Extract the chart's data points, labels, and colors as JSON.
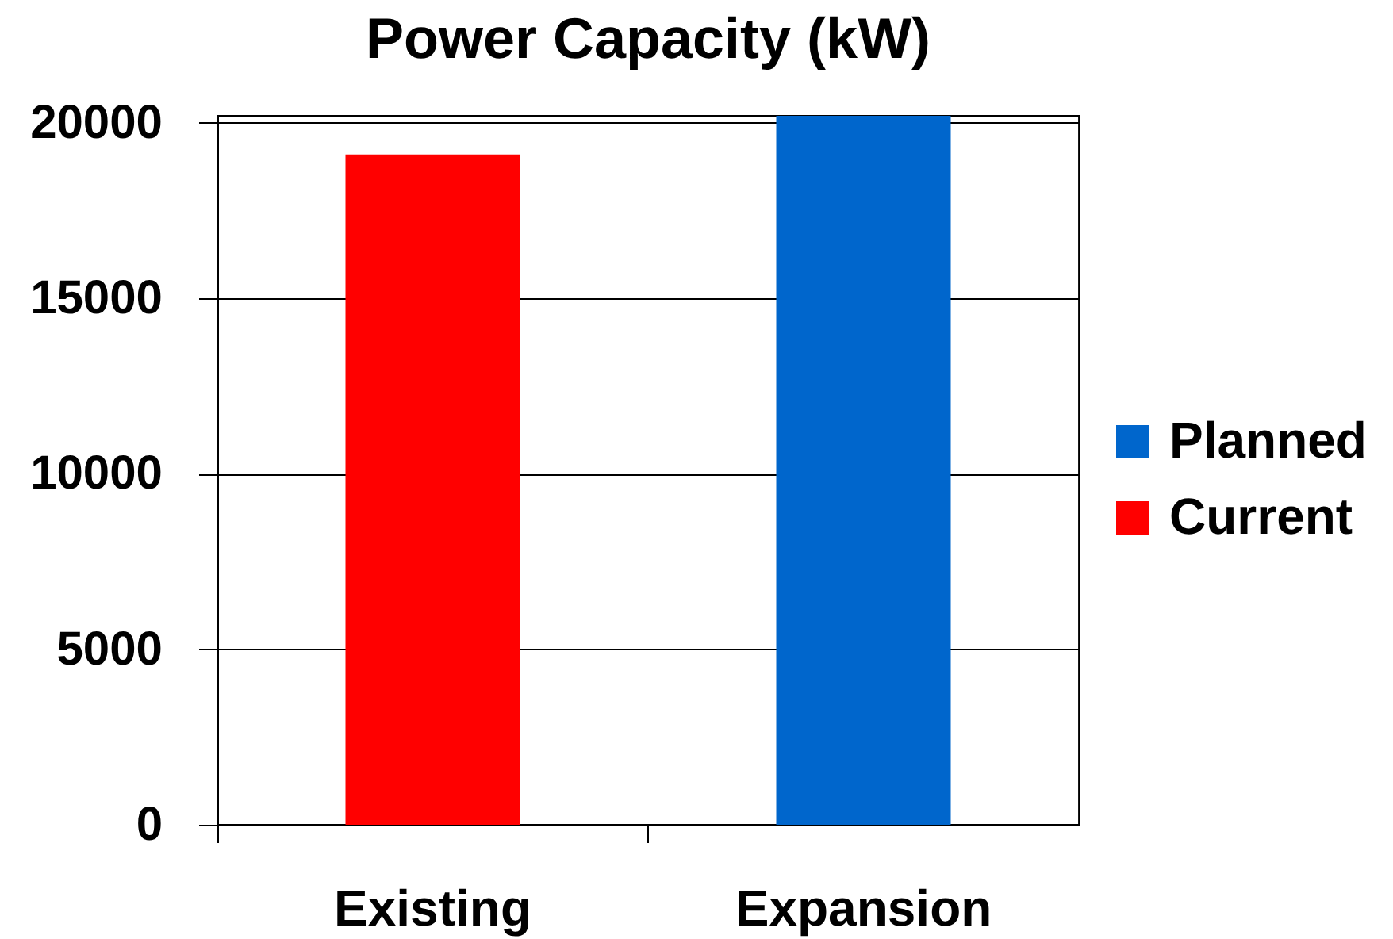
{
  "chart_data": {
    "type": "bar",
    "title": "Power Capacity (kW)",
    "categories": [
      "Existing",
      "Expansion"
    ],
    "series": [
      {
        "name": "Planned",
        "color": "#0066cc",
        "values": [
          null,
          20200
        ]
      },
      {
        "name": "Current",
        "color": "#ff0000",
        "values": [
          19100,
          null
        ]
      }
    ],
    "stacked": true,
    "ylim": [
      0,
      20200
    ],
    "yticks": [
      0,
      5000,
      10000,
      15000,
      20000
    ],
    "grid": "y",
    "legend": "right"
  }
}
